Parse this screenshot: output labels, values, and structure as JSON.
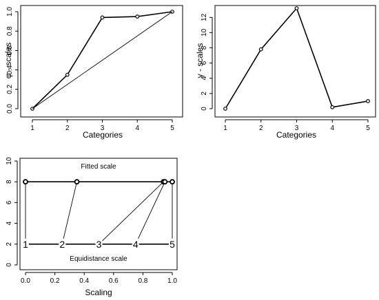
{
  "chart_data": [
    {
      "type": "line",
      "xlabel": "Categories",
      "ylabel": "φ - scales",
      "x_ticks": [
        "1",
        "2",
        "3",
        "4",
        "5"
      ],
      "y_ticks": [
        "0.0",
        "0.2",
        "0.4",
        "0.6",
        "0.8",
        "1.0"
      ],
      "xlim": [
        1,
        5
      ],
      "ylim": [
        0,
        1
      ],
      "series": [
        {
          "x": [
            1,
            2,
            3,
            4,
            5
          ],
          "y": [
            0.0,
            0.35,
            0.94,
            0.95,
            1.0
          ],
          "style": "line-with-points"
        },
        {
          "x": [
            1,
            5
          ],
          "y": [
            0.0,
            1.0
          ],
          "style": "line"
        }
      ],
      "grid": false
    },
    {
      "type": "line",
      "xlabel": "Categories",
      "ylabel": "γ - scales",
      "x_ticks": [
        "1",
        "2",
        "3",
        "4",
        "5"
      ],
      "y_ticks": [
        "0",
        "2",
        "4",
        "6",
        "8",
        "10",
        "12"
      ],
      "xlim": [
        1,
        5
      ],
      "ylim": [
        0,
        13.2
      ],
      "series": [
        {
          "x": [
            1,
            2,
            3,
            4,
            5
          ],
          "y": [
            0.0,
            7.8,
            13.2,
            0.2,
            1.0
          ],
          "style": "line-with-points"
        }
      ],
      "grid": false
    },
    {
      "type": "line",
      "xlabel": "Scaling",
      "ylabel": "",
      "x_ticks": [
        "0.0",
        "0.2",
        "0.4",
        "0.6",
        "0.8",
        "1.0"
      ],
      "y_ticks": [
        "0",
        "2",
        "4",
        "6",
        "8",
        "10"
      ],
      "xlim": [
        0,
        1
      ],
      "ylim": [
        0,
        10
      ],
      "annotations": [
        "Fitted scale",
        "Equidistance scale"
      ],
      "fitted_y": 8,
      "equidistance_y": 2,
      "fitted_positions": [
        0.0,
        0.35,
        0.94,
        0.95,
        1.0
      ],
      "equidistance_positions": [
        0.0,
        0.25,
        0.5,
        0.75,
        1.0
      ],
      "category_labels": [
        "1",
        "2",
        "3",
        "4",
        "5"
      ],
      "grid": false
    }
  ]
}
